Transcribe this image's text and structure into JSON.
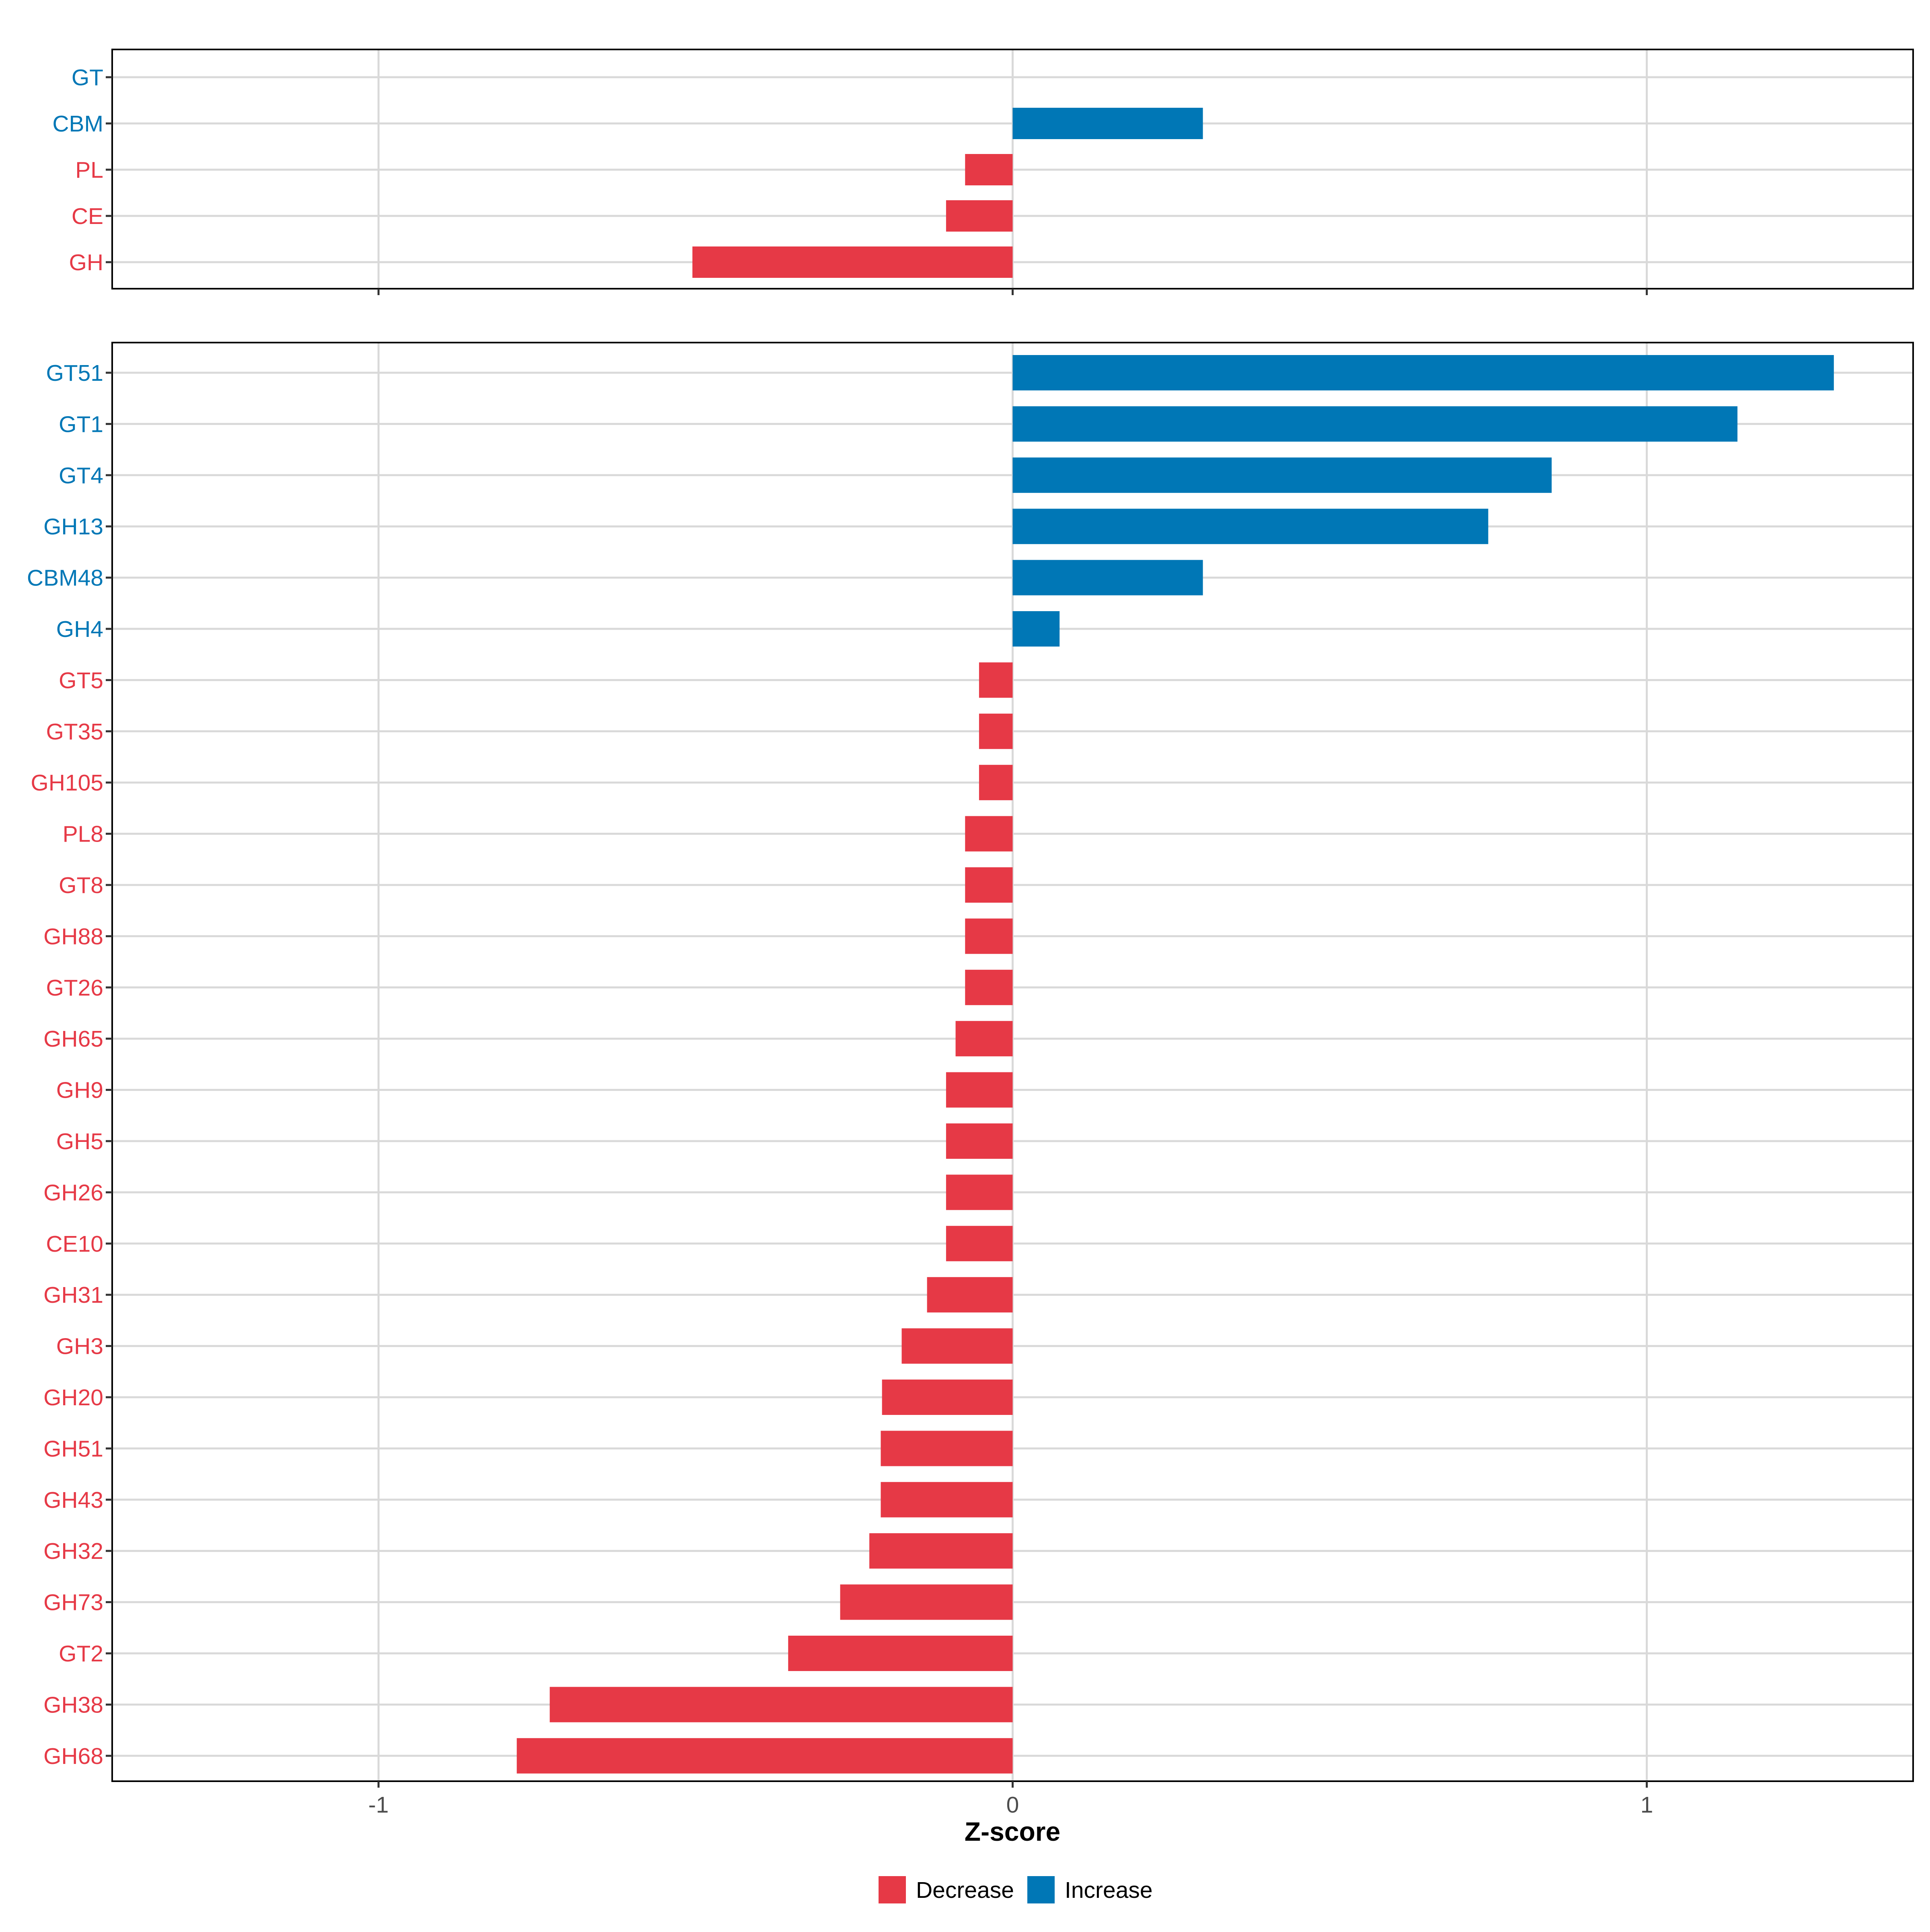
{
  "colors": {
    "decrease": "#E63946",
    "increase": "#0077B6",
    "grid": "#D9D9D9",
    "axis": "#333333",
    "frame": "#000000",
    "tick_label": "#4D4D4D"
  },
  "legend": {
    "items": [
      {
        "label": "Decrease",
        "color_key": "decrease"
      },
      {
        "label": "Increase",
        "color_key": "increase"
      }
    ]
  },
  "chart_data": [
    {
      "type": "bar",
      "orientation": "horizontal",
      "title": "",
      "xlabel": "",
      "ylabel": "",
      "xlim": [
        -1.42,
        1.42
      ],
      "x_ticks": [
        -1,
        0,
        1
      ],
      "x_tick_labels_shown": false,
      "grid": true,
      "categories": [
        "GT",
        "CBM",
        "PL",
        "CE",
        "GH"
      ],
      "values": [
        0.0,
        0.3,
        -0.075,
        -0.105,
        -0.505
      ],
      "direction": [
        "Increase",
        "Increase",
        "Decrease",
        "Decrease",
        "Decrease"
      ]
    },
    {
      "type": "bar",
      "orientation": "horizontal",
      "title": "",
      "xlabel": "Z-score",
      "ylabel": "",
      "xlim": [
        -1.42,
        1.42
      ],
      "x_ticks": [
        -1,
        0,
        1
      ],
      "x_tick_labels": [
        "-1",
        "0",
        "1"
      ],
      "x_tick_labels_shown": true,
      "grid": true,
      "legend_position": "bottom",
      "categories": [
        "GT51",
        "GT1",
        "GT4",
        "GH13",
        "CBM48",
        "GH4",
        "GT5",
        "GT35",
        "GH105",
        "PL8",
        "GT8",
        "GH88",
        "GT26",
        "GH65",
        "GH9",
        "GH5",
        "GH26",
        "CE10",
        "GH31",
        "GH3",
        "GH20",
        "GH51",
        "GH43",
        "GH32",
        "GH73",
        "GT2",
        "GH38",
        "GH68"
      ],
      "values": [
        1.295,
        1.143,
        0.85,
        0.75,
        0.3,
        0.074,
        -0.053,
        -0.053,
        -0.053,
        -0.075,
        -0.075,
        -0.075,
        -0.075,
        -0.09,
        -0.105,
        -0.105,
        -0.105,
        -0.105,
        -0.135,
        -0.175,
        -0.206,
        -0.208,
        -0.208,
        -0.226,
        -0.272,
        -0.354,
        -0.73,
        -0.782
      ],
      "direction": [
        "Increase",
        "Increase",
        "Increase",
        "Increase",
        "Increase",
        "Increase",
        "Decrease",
        "Decrease",
        "Decrease",
        "Decrease",
        "Decrease",
        "Decrease",
        "Decrease",
        "Decrease",
        "Decrease",
        "Decrease",
        "Decrease",
        "Decrease",
        "Decrease",
        "Decrease",
        "Decrease",
        "Decrease",
        "Decrease",
        "Decrease",
        "Decrease",
        "Decrease",
        "Decrease",
        "Decrease"
      ]
    }
  ]
}
